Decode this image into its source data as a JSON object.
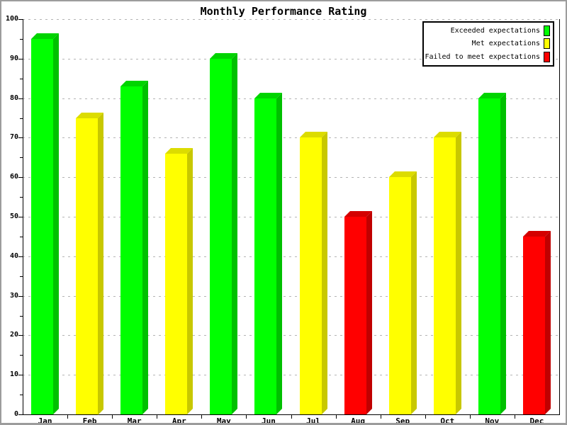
{
  "title": "Monthly Performance Rating",
  "chart_data": {
    "type": "bar",
    "title": "Monthly Performance Rating",
    "categories": [
      "Jan",
      "Feb",
      "Mar",
      "Apr",
      "May",
      "Jun",
      "Jul",
      "Aug",
      "Sep",
      "Oct",
      "Nov",
      "Dec"
    ],
    "values": [
      95,
      75,
      83,
      66,
      90,
      80,
      70,
      50,
      60,
      70,
      80,
      45
    ],
    "statuses": [
      "exceeded",
      "met",
      "exceeded",
      "met",
      "exceeded",
      "exceeded",
      "met",
      "failed",
      "met",
      "met",
      "exceeded",
      "failed"
    ],
    "xlabel": "",
    "ylabel": "",
    "ylim": [
      0,
      100
    ],
    "y_tick_step": 10,
    "y_minor_tick_step": 5,
    "grid": "dashed horizontal",
    "legend_position": "top-right"
  },
  "legend": {
    "items": [
      {
        "label": "Exceeded expectations",
        "status": "exceeded"
      },
      {
        "label": "Met expectations",
        "status": "met"
      },
      {
        "label": "Failed to meet expectations",
        "status": "failed"
      }
    ]
  },
  "colors": {
    "exceeded": {
      "front": "#00ff00",
      "top": "#00d400",
      "side": "#00c000"
    },
    "met": {
      "front": "#ffff00",
      "top": "#dcdc00",
      "side": "#c8c800"
    },
    "failed": {
      "front": "#ff0000",
      "top": "#d40000",
      "side": "#c00000"
    },
    "grid": "#b4b4b4",
    "axis": "#000000",
    "background": "#ffffff",
    "frame": "#9c9c9c"
  }
}
